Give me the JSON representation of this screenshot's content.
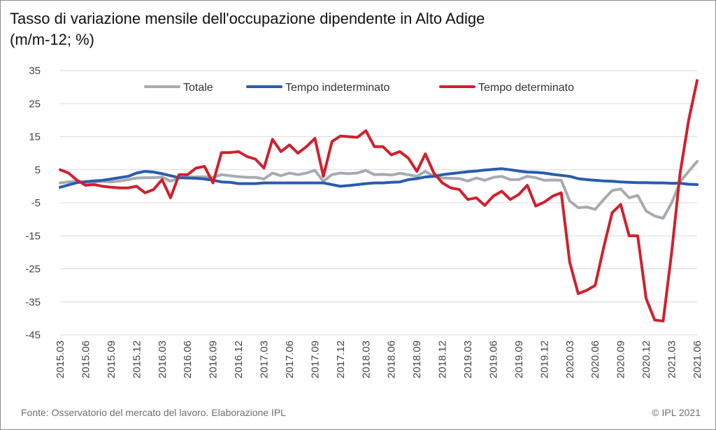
{
  "title": {
    "line1": "Tasso di variazione mensile dell'occupazione dipendente in Alto Adige",
    "line2": "(m/m-12; %)"
  },
  "footer": {
    "source": "Fonte: Osservatorio del mercato del lavoro. Elaborazione IPL",
    "copyright": "© IPL 2021"
  },
  "chart_data": {
    "type": "line",
    "title": "Tasso di variazione mensile dell'occupazione dipendente in Alto Adige (m/m-12; %)",
    "xlabel": "",
    "ylabel": "",
    "ylim": [
      -45,
      35
    ],
    "yticks": [
      35,
      25,
      15,
      5,
      -5,
      -15,
      -25,
      -35,
      -45
    ],
    "grid": true,
    "legend_position": "top",
    "x": [
      "2015.03",
      "2015.04",
      "2015.05",
      "2015.06",
      "2015.07",
      "2015.08",
      "2015.09",
      "2015.10",
      "2015.11",
      "2015.12",
      "2016.01",
      "2016.02",
      "2016.03",
      "2016.04",
      "2016.05",
      "2016.06",
      "2016.07",
      "2016.08",
      "2016.09",
      "2016.10",
      "2016.11",
      "2016.12",
      "2017.01",
      "2017.02",
      "2017.03",
      "2017.04",
      "2017.05",
      "2017.06",
      "2017.07",
      "2017.08",
      "2017.09",
      "2017.10",
      "2017.11",
      "2017.12",
      "2018.01",
      "2018.02",
      "2018.03",
      "2018.04",
      "2018.05",
      "2018.06",
      "2018.07",
      "2018.08",
      "2018.09",
      "2018.10",
      "2018.11",
      "2018.12",
      "2019.01",
      "2019.02",
      "2019.03",
      "2019.04",
      "2019.05",
      "2019.06",
      "2019.07",
      "2019.08",
      "2019.09",
      "2019.10",
      "2019.11",
      "2019.12",
      "2020.01",
      "2020.02",
      "2020.03",
      "2020.04",
      "2020.05",
      "2020.06",
      "2020.07",
      "2020.08",
      "2020.09",
      "2020.10",
      "2020.11",
      "2020.12",
      "2021.01",
      "2021.02",
      "2021.03",
      "2021.04",
      "2021.05",
      "2021.06"
    ],
    "xtick_labels": [
      "2015.03",
      "2015.06",
      "2015.09",
      "2015.12",
      "2016.03",
      "2016.06",
      "2016.09",
      "2016.12",
      "2017.03",
      "2017.06",
      "2017.09",
      "2017.12",
      "2018.03",
      "2018.06",
      "2018.09",
      "2018.12",
      "2019.03",
      "2019.06",
      "2019.09",
      "2019.12",
      "2020.03",
      "2020.06",
      "2020.09",
      "2020.12",
      "2021.03",
      "2021.06"
    ],
    "series": [
      {
        "name": "Totale",
        "color": "#a6abb2",
        "values": [
          1.0,
          1.3,
          1.5,
          1.2,
          1.3,
          1.5,
          1.3,
          1.6,
          2.0,
          2.5,
          2.6,
          2.6,
          2.8,
          1.5,
          2.5,
          2.8,
          2.8,
          2.9,
          2.7,
          3.5,
          3.2,
          2.9,
          2.7,
          2.7,
          2.2,
          4.0,
          3.2,
          4.0,
          3.5,
          4.0,
          4.8,
          1.5,
          3.5,
          4.0,
          3.8,
          4.0,
          4.8,
          3.5,
          3.6,
          3.4,
          3.9,
          3.5,
          3.0,
          4.5,
          3.0,
          2.5,
          2.4,
          2.3,
          1.6,
          2.5,
          1.8,
          2.7,
          3.0,
          2.0,
          2.0,
          3.0,
          2.6,
          1.8,
          1.9,
          1.8,
          -4.5,
          -6.5,
          -6.3,
          -7.0,
          -4.0,
          -1.3,
          -0.8,
          -3.5,
          -2.8,
          -7.5,
          -9.0,
          -9.7,
          -5.0,
          1.3,
          4.5,
          7.5
        ]
      },
      {
        "name": "Tempo indeterminato",
        "color": "#2a5cad",
        "values": [
          -0.3,
          0.4,
          1.1,
          1.4,
          1.6,
          1.8,
          2.2,
          2.6,
          3.0,
          4.0,
          4.5,
          4.3,
          3.8,
          3.2,
          2.6,
          2.5,
          2.4,
          2.2,
          1.8,
          1.3,
          1.2,
          0.8,
          0.8,
          0.8,
          1.0,
          1.0,
          1.0,
          1.0,
          1.0,
          1.0,
          1.0,
          1.0,
          0.5,
          0.0,
          0.2,
          0.5,
          0.8,
          1.0,
          1.0,
          1.2,
          1.3,
          2.0,
          2.3,
          2.8,
          3.0,
          3.5,
          3.8,
          4.1,
          4.4,
          4.6,
          4.9,
          5.1,
          5.3,
          5.0,
          4.6,
          4.3,
          4.2,
          4.0,
          3.6,
          3.3,
          3.0,
          2.3,
          2.0,
          1.8,
          1.6,
          1.5,
          1.3,
          1.2,
          1.1,
          1.1,
          1.0,
          1.0,
          0.9,
          0.9,
          0.6,
          0.5
        ]
      },
      {
        "name": "Tempo determinato",
        "color": "#d0202e",
        "values": [
          5.0,
          4.0,
          1.8,
          0.3,
          0.5,
          0.0,
          -0.3,
          -0.5,
          -0.5,
          0.0,
          -2.0,
          -1.0,
          2.0,
          -3.5,
          3.5,
          3.5,
          5.5,
          6.0,
          1.0,
          10.2,
          10.2,
          10.5,
          9.0,
          8.2,
          5.5,
          14.2,
          10.5,
          12.5,
          10.0,
          12.0,
          14.5,
          3.0,
          13.5,
          15.2,
          15.0,
          14.8,
          16.8,
          12.0,
          12.0,
          9.5,
          10.5,
          8.5,
          4.5,
          9.8,
          4.0,
          1.0,
          -0.5,
          -1.0,
          -4.0,
          -3.5,
          -5.8,
          -3.0,
          -1.5,
          -4.0,
          -2.5,
          0.3,
          -6.0,
          -4.8,
          -3.0,
          -2.0,
          -23.0,
          -32.5,
          -31.5,
          -30.0,
          -18.5,
          -8.0,
          -5.5,
          -15.0,
          -15.0,
          -34.0,
          -40.5,
          -40.8,
          -20.0,
          4.0,
          20.0,
          32.0
        ]
      }
    ]
  }
}
